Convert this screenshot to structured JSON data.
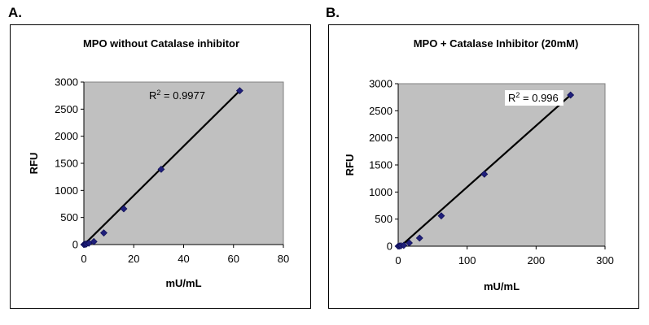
{
  "labels": {
    "a": "A.",
    "b": "B."
  },
  "chart_data": [
    {
      "type": "scatter",
      "title": "MPO without Catalase inhibitor",
      "xlabel": "mU/mL",
      "ylabel": "RFU",
      "xlim": [
        0,
        80
      ],
      "ylim": [
        0,
        3000
      ],
      "xticks": [
        0,
        20,
        40,
        60,
        80
      ],
      "yticks": [
        0,
        500,
        1000,
        1500,
        2000,
        2500,
        3000
      ],
      "series": [
        {
          "x": [
            0,
            0.5,
            1,
            2,
            4,
            8,
            16,
            31,
            62.5
          ],
          "y": [
            0,
            5,
            10,
            25,
            55,
            215,
            660,
            1390,
            2840
          ]
        }
      ],
      "trendline": {
        "x": [
          0,
          62.5
        ],
        "y": [
          -5,
          2840
        ]
      },
      "r2_label": "R",
      "r2_sup": "2",
      "r2_value": " = 0.9977",
      "grid": false,
      "plot_background": "#c0c0c0",
      "marker_color": "#1f1f7a",
      "line_color": "#000000"
    },
    {
      "type": "scatter",
      "title": "MPO + Catalase Inhibitor (20mM)",
      "xlabel": "mU/mL",
      "ylabel": "RFU",
      "xlim": [
        0,
        300
      ],
      "ylim": [
        0,
        3000
      ],
      "xticks": [
        0,
        100,
        200,
        300
      ],
      "yticks": [
        0,
        500,
        1000,
        1500,
        2000,
        2500,
        3000
      ],
      "series": [
        {
          "x": [
            0,
            2,
            4,
            8,
            16,
            31,
            62.5,
            125,
            250
          ],
          "y": [
            0,
            3,
            8,
            15,
            60,
            150,
            560,
            1330,
            2790
          ]
        }
      ],
      "trendline": {
        "x": [
          0,
          250
        ],
        "y": [
          -40,
          2790
        ]
      },
      "r2_label": "R",
      "r2_sup": "2",
      "r2_value": " = 0.996",
      "grid": false,
      "plot_background": "#c0c0c0",
      "marker_color": "#1f1f7a",
      "line_color": "#000000"
    }
  ]
}
